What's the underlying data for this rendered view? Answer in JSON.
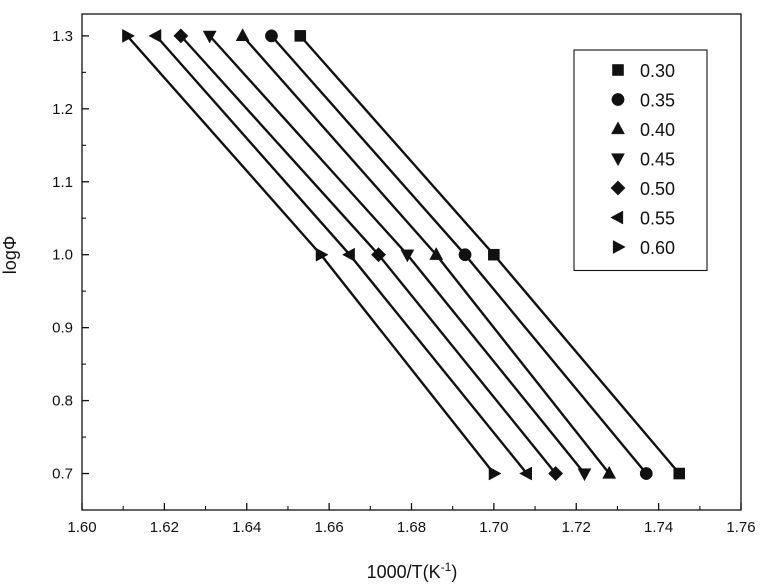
{
  "chart_data": {
    "type": "line",
    "xlabel": "1000/T(K",
    "xlabel_sup": "-1",
    "xlabel_end": ")",
    "ylabel": "logΦ",
    "xlim": [
      1.6,
      1.76
    ],
    "ylim": [
      0.65,
      1.33
    ],
    "xticks": [
      1.6,
      1.62,
      1.64,
      1.66,
      1.68,
      1.7,
      1.72,
      1.74,
      1.76
    ],
    "xtick_labels": [
      "1.60",
      "1.62",
      "1.64",
      "1.66",
      "1.68",
      "1.70",
      "1.72",
      "1.74",
      "1.76"
    ],
    "yticks": [
      0.7,
      0.8,
      0.9,
      1.0,
      1.1,
      1.2,
      1.3
    ],
    "ytick_labels": [
      "0.7",
      "0.8",
      "0.9",
      "1.0",
      "1.1",
      "1.2",
      "1.3"
    ],
    "grid": false,
    "legend_position": "top-right",
    "series": [
      {
        "name": "0.30",
        "marker": "square",
        "points": [
          [
            1.653,
            1.3
          ],
          [
            1.7,
            1.0
          ],
          [
            1.745,
            0.7
          ]
        ]
      },
      {
        "name": "0.35",
        "marker": "circle",
        "points": [
          [
            1.646,
            1.3
          ],
          [
            1.693,
            1.0
          ],
          [
            1.737,
            0.7
          ]
        ]
      },
      {
        "name": "0.40",
        "marker": "triangle-up",
        "points": [
          [
            1.639,
            1.3
          ],
          [
            1.686,
            1.0
          ],
          [
            1.728,
            0.7
          ]
        ]
      },
      {
        "name": "0.45",
        "marker": "triangle-down",
        "points": [
          [
            1.631,
            1.3
          ],
          [
            1.679,
            1.0
          ],
          [
            1.722,
            0.7
          ]
        ]
      },
      {
        "name": "0.50",
        "marker": "diamond",
        "points": [
          [
            1.624,
            1.3
          ],
          [
            1.672,
            1.0
          ],
          [
            1.715,
            0.7
          ]
        ]
      },
      {
        "name": "0.55",
        "marker": "triangle-left",
        "points": [
          [
            1.618,
            1.3
          ],
          [
            1.665,
            1.0
          ],
          [
            1.708,
            0.7
          ]
        ]
      },
      {
        "name": "0.60",
        "marker": "triangle-right",
        "points": [
          [
            1.611,
            1.3
          ],
          [
            1.658,
            1.0
          ],
          [
            1.7,
            0.7
          ]
        ]
      }
    ]
  }
}
